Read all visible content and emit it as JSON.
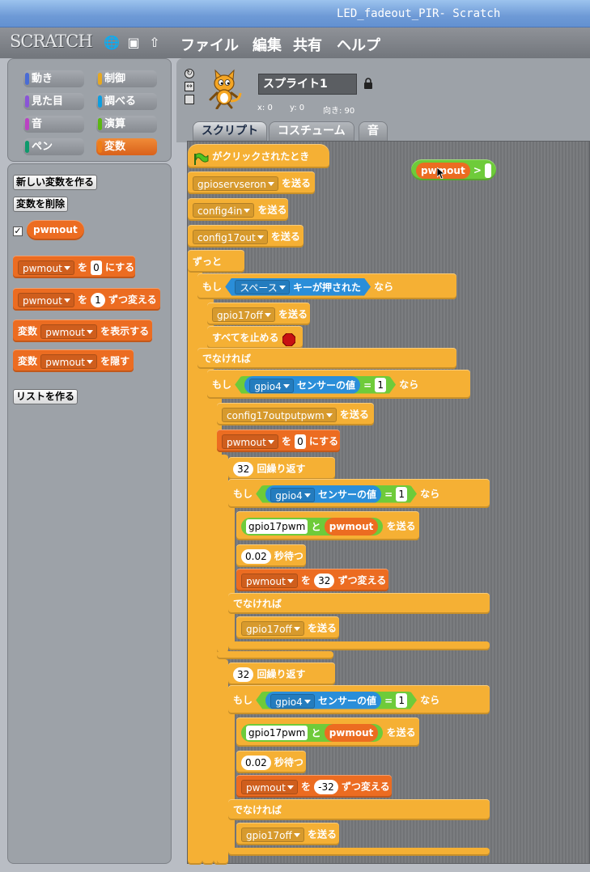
{
  "window": {
    "title": "LED_fadeout_PIR- Scratch"
  },
  "menubar": {
    "logo": "SCRATCH",
    "items": [
      "ファイル",
      "編集",
      "共有",
      "ヘルプ"
    ]
  },
  "categories": [
    {
      "label": "動き",
      "color": "#4a6cd4"
    },
    {
      "label": "制御",
      "color": "#e6a822"
    },
    {
      "label": "見た目",
      "color": "#8a55d7"
    },
    {
      "label": "調べる",
      "color": "#0e9ee0"
    },
    {
      "label": "音",
      "color": "#bb42c3"
    },
    {
      "label": "演算",
      "color": "#5cb712"
    },
    {
      "label": "ペン",
      "color": "#0e9a6c"
    },
    {
      "label": "変数",
      "color": "#ee7d16"
    }
  ],
  "palette": {
    "new_var_button": "新しい変数を作る",
    "delete_var_button": "変数を削除",
    "var_reporter": "pwmout",
    "blocks": {
      "set": {
        "var": "pwmout",
        "to": "を",
        "value": "0",
        "suffix": "にする"
      },
      "change": {
        "var": "pwmout",
        "to": "を",
        "value": "1",
        "suffix": "ずつ変える"
      },
      "show": {
        "prefix": "変数",
        "var": "pwmout",
        "suffix": "を表示する"
      },
      "hide": {
        "prefix": "変数",
        "var": "pwmout",
        "suffix": "を隠す"
      }
    },
    "make_list_button": "リストを作る"
  },
  "sprite": {
    "name": "スプライト1",
    "x_label": "x: 0",
    "y_label": "y: 0",
    "dir_label": "向き: 90"
  },
  "tabs": [
    "スクリプト",
    "コスチューム",
    "音"
  ],
  "script": {
    "hat": "がクリックされたとき",
    "send": "を送る",
    "b1": "gpioservseron",
    "b2": "config4in",
    "b3": "config17out",
    "forever": "ずっと",
    "if": "もし",
    "then": "なら",
    "else": "でなければ",
    "key": "スペース",
    "key_suffix": "キーが押された",
    "gpio17off": "gpio17off",
    "stop_all": "すべてを止める",
    "gpio4": "gpio4",
    "sensor_value": "センサーの値",
    "eq": "=",
    "one": "1",
    "config_pwm": "config17outputpwm",
    "var": "pwmout",
    "set_to": "を",
    "zero": "0",
    "set_suffix": "にする",
    "repeat_n": "32",
    "repeat": "回繰り返す",
    "gpio17pwm": "gpio17pwm",
    "and": "と",
    "wait_n": "0.02",
    "wait": "秒待つ",
    "change_up": "32",
    "change_down": "-32",
    "change_suffix": "ずつ変える",
    "gt": ">",
    "floating_var": "pwmout"
  }
}
